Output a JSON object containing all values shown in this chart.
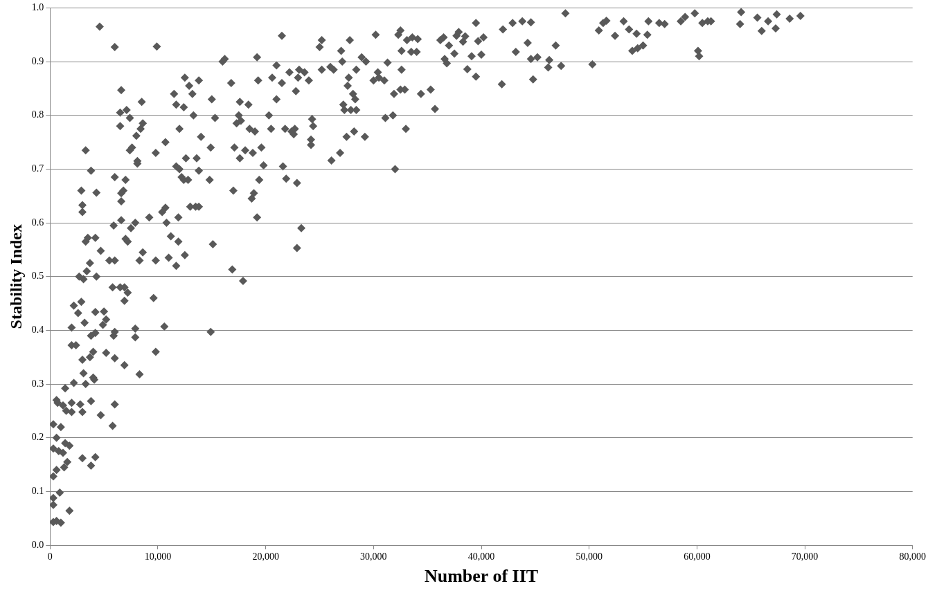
{
  "chart_data": {
    "type": "scatter",
    "xlabel": "Number of IIT",
    "ylabel": "Stability Index",
    "marker": "diamond",
    "grid": "y",
    "legend": false,
    "xlim": [
      0,
      80000
    ],
    "ylim": [
      0,
      1
    ],
    "xticks": [
      0,
      {
        "value": 10000,
        "label": "10,000"
      },
      {
        "value": 20000,
        "label": "20,000"
      },
      {
        "value": 30000,
        "label": "30,000"
      },
      {
        "value": 40000,
        "label": "40,000"
      },
      {
        "value": 50000,
        "label": "50,000"
      },
      {
        "value": 60000,
        "label": "60,000"
      },
      {
        "value": 70000,
        "label": "70,000"
      },
      {
        "value": 80000,
        "label": "80,000"
      }
    ],
    "yticks": [
      {
        "value": 0,
        "label": "0.0"
      },
      0.1,
      0.2,
      0.3,
      0.4,
      0.5,
      0.6,
      0.7,
      0.8,
      0.9,
      {
        "value": 1,
        "label": "1.0"
      }
    ],
    "series": [
      {
        "color": "#595959",
        "x": [
          300,
          600,
          1000,
          1800,
          300,
          300,
          900,
          300,
          600,
          1300,
          1600,
          800,
          1200,
          1400,
          1800,
          300,
          600,
          300,
          1000,
          3800,
          3000,
          4200,
          5800,
          4700,
          1200,
          1500,
          2000,
          2000,
          600,
          700,
          2800,
          3000,
          3800,
          6000,
          1400,
          2200,
          3300,
          4100,
          4000,
          3100,
          3000,
          3700,
          4000,
          6000,
          6900,
          8300,
          2000,
          2400,
          3800,
          4200,
          5200,
          5900,
          6000,
          7900,
          7900,
          2000,
          2200,
          2600,
          3200,
          2900,
          4200,
          5000,
          4900,
          5200,
          2700,
          3100,
          3400,
          3700,
          4300,
          4700,
          3300,
          3500,
          4200,
          5500,
          6000,
          6500,
          6900,
          7200,
          6900,
          5800,
          9600,
          9800,
          10600,
          3000,
          3000,
          2900,
          3800,
          4300,
          3300,
          4600,
          6000,
          9900,
          5900,
          6600,
          7000,
          7200,
          7500,
          7900,
          8300,
          8600,
          9800,
          9200,
          6600,
          6800,
          7000,
          7400,
          7600,
          8100,
          8100,
          6500,
          6500,
          6600,
          7100,
          7400,
          8000,
          8400,
          8600,
          8500,
          6000,
          6600,
          9800,
          10400,
          10700,
          10800,
          11000,
          11200,
          11700,
          11900,
          11900,
          12500,
          12000,
          11700,
          12200,
          12400,
          12600,
          12800,
          13000,
          13500,
          13800,
          14000,
          13800,
          13600,
          11500,
          11700,
          12000,
          12400,
          12500,
          12900,
          13300,
          13200,
          13800,
          10700,
          14900,
          14800,
          15000,
          15300,
          15100,
          14900,
          16000,
          16200,
          16800,
          17100,
          17300,
          17000,
          16900,
          17900,
          17600,
          17700,
          17500,
          17600,
          18100,
          18400,
          18500,
          18800,
          18700,
          18900,
          19000,
          19200,
          19200,
          19300,
          19400,
          19600,
          19800,
          20300,
          20500,
          20600,
          21000,
          21000,
          21500,
          21500,
          21600,
          21800,
          21900,
          22200,
          22400,
          22600,
          22700,
          22800,
          22900,
          22900,
          23000,
          23100,
          23300,
          23600,
          24000,
          24200,
          24300,
          24200,
          24400,
          25000,
          25200,
          25200,
          26000,
          26100,
          26300,
          26900,
          27000,
          27100,
          27200,
          27300,
          27500,
          27600,
          27700,
          27800,
          27900,
          28100,
          28200,
          28300,
          28400,
          28400,
          28900,
          29200,
          29300,
          30000,
          30200,
          30400,
          30500,
          31000,
          31100,
          31300,
          31800,
          31900,
          32000,
          32300,
          32500,
          32600,
          32600,
          32500,
          32900,
          33000,
          33100,
          33500,
          33600,
          34000,
          34100,
          34400,
          35300,
          35700,
          36200,
          36500,
          36600,
          36800,
          37000,
          37500,
          37700,
          37900,
          38300,
          38500,
          38700,
          39100,
          39500,
          39500,
          39700,
          40000,
          40200,
          41900,
          42000,
          42900,
          43200,
          43800,
          44300,
          44600,
          44800,
          44600,
          45200,
          46200,
          46300,
          46900,
          47400,
          47800,
          50300,
          50900,
          51300,
          51600,
          52400,
          53200,
          53700,
          54000,
          54400,
          54500,
          55000,
          55400,
          55500,
          56500,
          57000,
          58500,
          58900,
          59800,
          60100,
          60200,
          60500,
          61000,
          61300,
          64000,
          64100,
          65600,
          66000,
          66600,
          67300,
          67400,
          68600,
          69600
        ],
        "values": [
          0.043,
          0.045,
          0.042,
          0.064,
          0.075,
          0.088,
          0.098,
          0.128,
          0.14,
          0.145,
          0.155,
          0.175,
          0.172,
          0.19,
          0.185,
          0.18,
          0.2,
          0.225,
          0.22,
          0.148,
          0.162,
          0.164,
          0.222,
          0.242,
          0.26,
          0.25,
          0.248,
          0.265,
          0.27,
          0.265,
          0.262,
          0.248,
          0.268,
          0.262,
          0.292,
          0.302,
          0.3,
          0.308,
          0.312,
          0.32,
          0.345,
          0.35,
          0.36,
          0.348,
          0.335,
          0.318,
          0.372,
          0.372,
          0.39,
          0.395,
          0.358,
          0.39,
          0.397,
          0.387,
          0.403,
          0.405,
          0.446,
          0.432,
          0.414,
          0.453,
          0.434,
          0.435,
          0.41,
          0.42,
          0.5,
          0.495,
          0.51,
          0.525,
          0.5,
          0.548,
          0.565,
          0.572,
          0.572,
          0.53,
          0.53,
          0.48,
          0.48,
          0.47,
          0.455,
          0.48,
          0.46,
          0.36,
          0.407,
          0.62,
          0.633,
          0.66,
          0.697,
          0.656,
          0.735,
          0.965,
          0.927,
          0.928,
          0.595,
          0.605,
          0.57,
          0.565,
          0.59,
          0.6,
          0.53,
          0.545,
          0.53,
          0.61,
          0.64,
          0.66,
          0.68,
          0.735,
          0.74,
          0.71,
          0.715,
          0.78,
          0.805,
          0.847,
          0.81,
          0.795,
          0.762,
          0.775,
          0.785,
          0.825,
          0.685,
          0.655,
          0.73,
          0.62,
          0.628,
          0.6,
          0.535,
          0.575,
          0.52,
          0.61,
          0.565,
          0.54,
          0.7,
          0.705,
          0.685,
          0.68,
          0.72,
          0.68,
          0.63,
          0.63,
          0.63,
          0.76,
          0.697,
          0.72,
          0.84,
          0.82,
          0.775,
          0.815,
          0.87,
          0.855,
          0.8,
          0.84,
          0.865,
          0.75,
          0.74,
          0.68,
          0.83,
          0.795,
          0.56,
          0.397,
          0.9,
          0.905,
          0.86,
          0.74,
          0.785,
          0.66,
          0.513,
          0.492,
          0.72,
          0.79,
          0.8,
          0.825,
          0.735,
          0.82,
          0.775,
          0.73,
          0.645,
          0.655,
          0.77,
          0.61,
          0.908,
          0.865,
          0.68,
          0.74,
          0.707,
          0.8,
          0.775,
          0.87,
          0.83,
          0.893,
          0.948,
          0.86,
          0.705,
          0.775,
          0.682,
          0.88,
          0.77,
          0.765,
          0.775,
          0.845,
          0.553,
          0.674,
          0.87,
          0.885,
          0.59,
          0.88,
          0.865,
          0.745,
          0.793,
          0.755,
          0.78,
          0.927,
          0.94,
          0.885,
          0.89,
          0.716,
          0.885,
          0.73,
          0.92,
          0.9,
          0.82,
          0.81,
          0.76,
          0.855,
          0.87,
          0.94,
          0.81,
          0.84,
          0.77,
          0.83,
          0.885,
          0.81,
          0.908,
          0.76,
          0.9,
          0.865,
          0.95,
          0.88,
          0.87,
          0.865,
          0.795,
          0.898,
          0.8,
          0.84,
          0.7,
          0.95,
          0.958,
          0.885,
          0.92,
          0.848,
          0.848,
          0.775,
          0.94,
          0.918,
          0.945,
          0.918,
          0.942,
          0.84,
          0.848,
          0.812,
          0.94,
          0.945,
          0.905,
          0.897,
          0.93,
          0.915,
          0.948,
          0.955,
          0.937,
          0.947,
          0.886,
          0.91,
          0.972,
          0.872,
          0.938,
          0.913,
          0.945,
          0.858,
          0.96,
          0.972,
          0.918,
          0.975,
          0.935,
          0.973,
          0.867,
          0.905,
          0.908,
          0.889,
          0.903,
          0.93,
          0.892,
          0.99,
          0.895,
          0.958,
          0.972,
          0.976,
          0.948,
          0.975,
          0.96,
          0.92,
          0.952,
          0.925,
          0.93,
          0.95,
          0.975,
          0.972,
          0.97,
          0.975,
          0.983,
          0.99,
          0.92,
          0.91,
          0.972,
          0.975,
          0.975,
          0.97,
          0.992,
          0.982,
          0.957,
          0.975,
          0.962,
          0.988,
          0.98,
          0.985
        ]
      }
    ]
  }
}
